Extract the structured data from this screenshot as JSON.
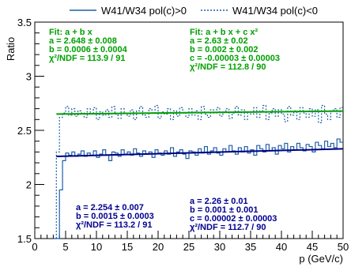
{
  "chart_data": {
    "type": "line",
    "title": "",
    "xlabel": "p (GeV/c)",
    "ylabel": "Ratio",
    "xlim": [
      0,
      50
    ],
    "ylim": [
      1.5,
      3.5
    ],
    "x_ticks": [
      0,
      5,
      10,
      15,
      20,
      25,
      30,
      35,
      40,
      45,
      50
    ],
    "y_ticks": [
      1.5,
      2,
      2.5,
      3,
      3.5
    ],
    "legend": {
      "placement": "top",
      "entries": [
        {
          "name": "W41/W34 pol(c)>0",
          "style": "solid",
          "color": "#1f5fa8"
        },
        {
          "name": "W41/W34 pol(c)<0",
          "style": "dotted",
          "color": "#1f5fa8"
        }
      ]
    },
    "series": [
      {
        "name": "W41/W34 pol(c)<0",
        "style": "dotted-step",
        "color": "#1f5fa8",
        "x": [
          3.0,
          3.5,
          4.0,
          4.5,
          5.0,
          5.5,
          6.0,
          6.5,
          7.0,
          7.5,
          8.0,
          8.5,
          9.0,
          9.5,
          10.0,
          10.5,
          11.0,
          11.5,
          12.0,
          12.5,
          13.0,
          13.5,
          14.0,
          14.5,
          15.0,
          15.5,
          16.0,
          16.5,
          17.0,
          17.5,
          18.0,
          18.5,
          19.0,
          19.5,
          20.0,
          20.5,
          21.0,
          21.5,
          22.0,
          22.5,
          23.0,
          23.5,
          24.0,
          24.5,
          25.0,
          25.5,
          26.0,
          26.5,
          27.0,
          27.5,
          28.0,
          28.5,
          29.0,
          29.5,
          30.0,
          30.5,
          31.0,
          31.5,
          32.0,
          32.5,
          33.0,
          33.5,
          34.0,
          34.5,
          35.0,
          35.5,
          36.0,
          36.5,
          37.0,
          37.5,
          38.0,
          38.5,
          39.0,
          39.5,
          40.0,
          40.5,
          41.0,
          41.5,
          42.0,
          42.5,
          43.0,
          43.5,
          44.0,
          44.5,
          45.0,
          45.5,
          46.0,
          46.5,
          47.0,
          47.5,
          48.0,
          48.5,
          49.0,
          49.5
        ],
        "y": [
          1.5,
          2.3,
          2.62,
          2.66,
          2.72,
          2.64,
          2.7,
          2.63,
          2.68,
          2.66,
          2.62,
          2.7,
          2.65,
          2.71,
          2.6,
          2.67,
          2.64,
          2.69,
          2.62,
          2.72,
          2.65,
          2.61,
          2.7,
          2.66,
          2.63,
          2.69,
          2.6,
          2.68,
          2.72,
          2.64,
          2.62,
          2.7,
          2.66,
          2.73,
          2.61,
          2.67,
          2.65,
          2.7,
          2.6,
          2.68,
          2.63,
          2.71,
          2.66,
          2.62,
          2.7,
          2.64,
          2.68,
          2.6,
          2.72,
          2.65,
          2.62,
          2.69,
          2.66,
          2.71,
          2.63,
          2.67,
          2.7,
          2.61,
          2.66,
          2.72,
          2.64,
          2.69,
          2.6,
          2.67,
          2.65,
          2.71,
          2.62,
          2.68,
          2.73,
          2.6,
          2.66,
          2.7,
          2.63,
          2.69,
          2.65,
          2.58,
          2.72,
          2.64,
          2.68,
          2.6,
          2.71,
          2.66,
          2.62,
          2.7,
          2.63,
          2.69,
          2.57,
          2.73,
          2.65,
          2.6,
          2.68,
          2.7,
          2.62,
          2.71
        ]
      },
      {
        "name": "W41/W34 pol(c)>0",
        "style": "solid-step",
        "color": "#1f5fa8",
        "x": [
          3.0,
          3.5,
          4.0,
          4.5,
          5.0,
          5.5,
          6.0,
          6.5,
          7.0,
          7.5,
          8.0,
          8.5,
          9.0,
          9.5,
          10.0,
          10.5,
          11.0,
          11.5,
          12.0,
          12.5,
          13.0,
          13.5,
          14.0,
          14.5,
          15.0,
          15.5,
          16.0,
          16.5,
          17.0,
          17.5,
          18.0,
          18.5,
          19.0,
          19.5,
          20.0,
          20.5,
          21.0,
          21.5,
          22.0,
          22.5,
          23.0,
          23.5,
          24.0,
          24.5,
          25.0,
          25.5,
          26.0,
          26.5,
          27.0,
          27.5,
          28.0,
          28.5,
          29.0,
          29.5,
          30.0,
          30.5,
          31.0,
          31.5,
          32.0,
          32.5,
          33.0,
          33.5,
          34.0,
          34.5,
          35.0,
          35.5,
          36.0,
          36.5,
          37.0,
          37.5,
          38.0,
          38.5,
          39.0,
          39.5,
          40.0,
          40.5,
          41.0,
          41.5,
          42.0,
          42.5,
          43.0,
          43.5,
          44.0,
          44.5,
          45.0,
          45.5,
          46.0,
          46.5,
          47.0,
          47.5,
          48.0,
          48.5,
          49.0,
          49.5
        ],
        "y": [
          1.5,
          1.5,
          1.95,
          2.22,
          2.29,
          2.27,
          2.3,
          2.26,
          2.28,
          2.31,
          2.26,
          2.29,
          2.27,
          2.31,
          2.25,
          2.28,
          2.32,
          2.27,
          2.22,
          2.3,
          2.29,
          2.26,
          2.32,
          2.28,
          2.3,
          2.27,
          2.33,
          2.29,
          2.26,
          2.31,
          2.28,
          2.3,
          2.25,
          2.32,
          2.29,
          2.27,
          2.31,
          2.28,
          2.34,
          2.26,
          2.3,
          2.32,
          2.28,
          2.24,
          2.31,
          2.3,
          2.27,
          2.33,
          2.29,
          2.35,
          2.28,
          2.31,
          2.34,
          2.29,
          2.27,
          2.33,
          2.3,
          2.36,
          2.31,
          2.28,
          2.34,
          2.3,
          2.35,
          2.29,
          2.32,
          2.27,
          2.36,
          2.33,
          2.3,
          2.37,
          2.31,
          2.34,
          2.28,
          2.36,
          2.33,
          2.38,
          2.3,
          2.35,
          2.32,
          2.38,
          2.34,
          2.31,
          2.37,
          2.35,
          2.3,
          2.39,
          2.36,
          2.33,
          2.4,
          2.35,
          2.38,
          2.34,
          2.42,
          2.39
        ]
      }
    ],
    "fits": [
      {
        "name": "fit-upper",
        "color": "#00a000",
        "x_range": [
          3.5,
          50
        ],
        "a": 2.648,
        "b": 0.0006,
        "c": 0
      },
      {
        "name": "fit-lower",
        "color": "#000080",
        "x_range": [
          3.5,
          50
        ],
        "a": 2.254,
        "b": 0.0015,
        "c": 0
      }
    ],
    "annotations": {
      "upper_left": {
        "color": "#00a000",
        "lines": [
          "Fit: a + b x",
          "a = 2.648 ± 0.008",
          "b = 0.0006 ± 0.0004",
          "χ²/NDF = 113.9 / 91"
        ]
      },
      "upper_right": {
        "color": "#00a000",
        "lines": [
          "Fit: a + b x + c x²",
          "a = 2.63 ± 0.02",
          "b = 0.002 ± 0.002",
          "c = -0.00003 ± 0.00003",
          "χ²/NDF = 112.8 / 90"
        ]
      },
      "lower_left": {
        "color": "#000090",
        "lines": [
          "a = 2.254 ± 0.007",
          "b = 0.0015 ± 0.0003",
          "χ²/NDF = 113.2 / 91"
        ]
      },
      "lower_right": {
        "color": "#000090",
        "lines": [
          "a = 2.26 ± 0.01",
          "b = 0.001 ± 0.001",
          "c = 0.00002 ± 0.00003",
          "χ²/NDF = 112.7 / 90"
        ]
      }
    }
  }
}
